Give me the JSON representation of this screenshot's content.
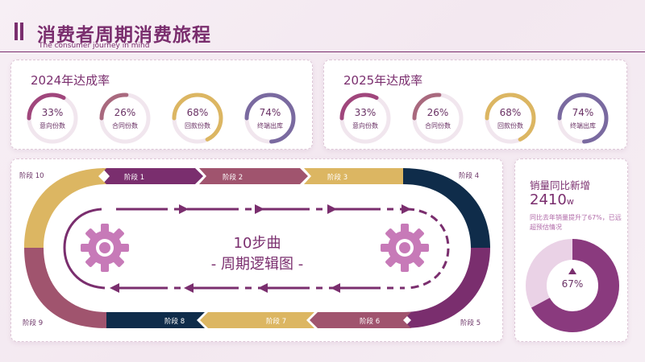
{
  "header": {
    "title": "消费者周期消费旅程",
    "subtitle": "The consumer journey in mind"
  },
  "colors": {
    "plum": "#7a2e6e",
    "mauve": "#a0546e",
    "gold": "#dcb662",
    "navy": "#0f2c4a",
    "violet": "#7a6aa0",
    "gear": "#c77ab8"
  },
  "rates_2024": {
    "title": "2024年达成率",
    "items": [
      {
        "pct": "33%",
        "label": "意向份数",
        "value": 0.33,
        "color": "#a0467c"
      },
      {
        "pct": "26%",
        "label": "合同份数",
        "value": 0.26,
        "color": "#a9697e"
      },
      {
        "pct": "68%",
        "label": "回款份数",
        "value": 0.68,
        "color": "#dcb662"
      },
      {
        "pct": "74%",
        "label": "终端出库",
        "value": 0.74,
        "color": "#7a6aa0"
      }
    ]
  },
  "rates_2025": {
    "title": "2025年达成率",
    "items": [
      {
        "pct": "33%",
        "label": "意向份数",
        "value": 0.33,
        "color": "#a0467c"
      },
      {
        "pct": "26%",
        "label": "合同份数",
        "value": 0.26,
        "color": "#a9697e"
      },
      {
        "pct": "68%",
        "label": "回款份数",
        "value": 0.68,
        "color": "#dcb662"
      },
      {
        "pct": "74%",
        "label": "终端出库",
        "value": 0.74,
        "color": "#7a6aa0"
      }
    ]
  },
  "flow": {
    "center_line1": "10步曲",
    "center_line2": "- 周期逻辑图 -",
    "stages": {
      "s1": "阶段 1",
      "s2": "阶段 2",
      "s3": "阶段 3",
      "s4": "阶段 4",
      "s5": "阶段 5",
      "s6": "阶段 6",
      "s7": "阶段 7",
      "s8": "阶段 8",
      "s9": "阶段 9",
      "s10": "阶段 10"
    }
  },
  "sales": {
    "title": "销量同比新增",
    "value": "2410",
    "unit": "w",
    "desc": "同比去年销量提升了67%，已远超预估情况",
    "pct": "67%",
    "ratio": 0.67
  }
}
